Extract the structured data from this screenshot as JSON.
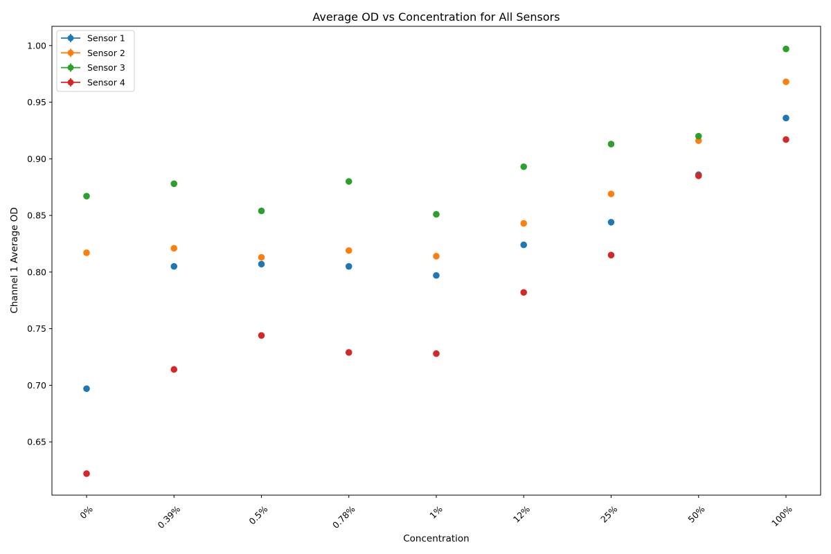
{
  "chart_data": {
    "type": "scatter",
    "title": "Average OD vs Concentration for All Sensors",
    "xlabel": "Concentration",
    "ylabel": "Channel 1 Average OD",
    "categories": [
      "0%",
      "0.39%",
      "0.5%",
      "0.78%",
      "1%",
      "12%",
      "25%",
      "50%",
      "100%"
    ],
    "ylim": [
      0.603,
      1.017
    ],
    "yticks": [
      0.65,
      0.7,
      0.75,
      0.8,
      0.85,
      0.9,
      0.95,
      1.0
    ],
    "ytick_labels": [
      "0.65",
      "0.70",
      "0.75",
      "0.80",
      "0.85",
      "0.90",
      "0.95",
      "1.00"
    ],
    "grid": false,
    "legend_position": "top-left",
    "series": [
      {
        "name": "Sensor 1",
        "color": "#1f77b4",
        "values": [
          0.697,
          0.805,
          0.807,
          0.805,
          0.797,
          0.824,
          0.844,
          0.886,
          0.936
        ]
      },
      {
        "name": "Sensor 2",
        "color": "#ff7f0e",
        "values": [
          0.817,
          0.821,
          0.813,
          0.819,
          0.814,
          0.843,
          0.869,
          0.916,
          0.968
        ]
      },
      {
        "name": "Sensor 3",
        "color": "#2ca02c",
        "values": [
          0.867,
          0.878,
          0.854,
          0.88,
          0.851,
          0.893,
          0.913,
          0.92,
          0.997
        ]
      },
      {
        "name": "Sensor 4",
        "color": "#d62728",
        "values": [
          0.622,
          0.714,
          0.744,
          0.729,
          0.728,
          0.782,
          0.815,
          0.885,
          0.917
        ]
      }
    ]
  }
}
